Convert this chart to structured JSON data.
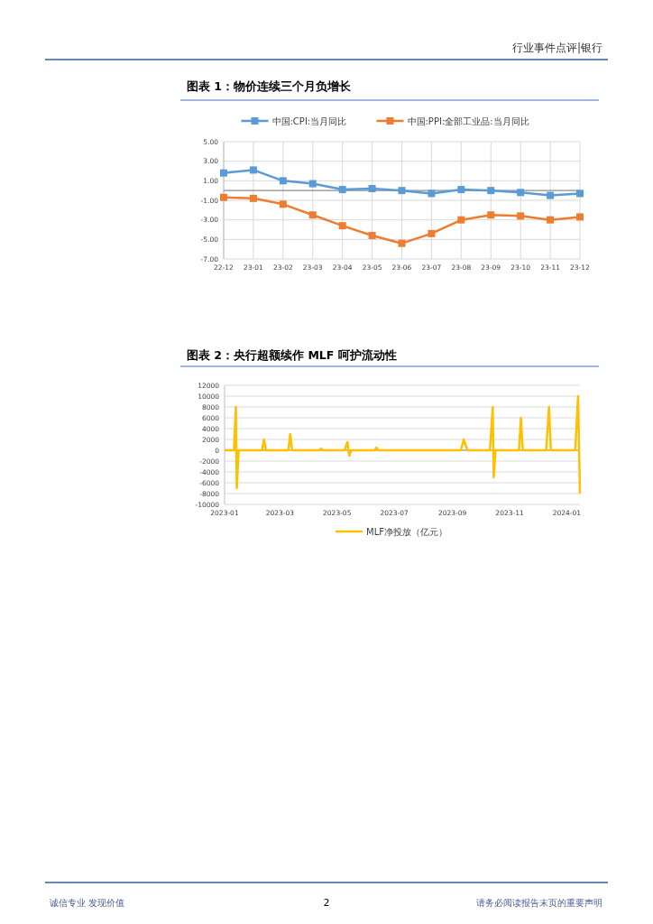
{
  "chart_data": [
    {
      "type": "line",
      "title": "图表 1：物价连续三个月负增长",
      "categories": [
        "22-12",
        "23-01",
        "23-02",
        "23-03",
        "23-04",
        "23-05",
        "23-06",
        "23-07",
        "23-08",
        "23-09",
        "23-10",
        "23-11",
        "23-12"
      ],
      "series": [
        {
          "name": "中国:CPI:当月同比",
          "color": "#5b9bd5",
          "values": [
            1.8,
            2.1,
            1.0,
            0.7,
            0.1,
            0.2,
            0.0,
            -0.3,
            0.1,
            0.0,
            -0.2,
            -0.5,
            -0.3
          ]
        },
        {
          "name": "中国:PPI:全部工业品:当月同比",
          "color": "#ed7d31",
          "values": [
            -0.7,
            -0.8,
            -1.4,
            -2.5,
            -3.6,
            -4.6,
            -5.4,
            -4.4,
            -3.0,
            -2.5,
            -2.6,
            -3.0,
            -2.7
          ]
        }
      ],
      "ylim": [
        -7,
        5
      ],
      "yticks": [
        {
          "value": 5,
          "label": "5.00"
        },
        {
          "value": 3,
          "label": "3.00"
        },
        {
          "value": 1,
          "label": "1.00"
        },
        {
          "value": -1,
          "label": "-1.00"
        },
        {
          "value": -3,
          "label": "-3.00"
        },
        {
          "value": -5,
          "label": "-5.00"
        },
        {
          "value": -7,
          "label": "-7.00"
        }
      ],
      "grid": true,
      "legend": "top",
      "marker": "square",
      "annotations": [
        "行业事件点评|银行"
      ]
    },
    {
      "type": "line",
      "title": "图表 2：央行超额续作 MLF 呵护流动性",
      "x": [
        "2023-01-01",
        "2023-01-11",
        "2023-01-13",
        "2023-01-14",
        "2023-01-16",
        "2023-02-10",
        "2023-02-12",
        "2023-02-14",
        "2023-03-10",
        "2023-03-12",
        "2023-03-14",
        "2023-04-12",
        "2023-04-14",
        "2023-04-16",
        "2023-05-09",
        "2023-05-12",
        "2023-05-14",
        "2023-05-16",
        "2023-06-10",
        "2023-06-12",
        "2023-06-14",
        "2023-09-10",
        "2023-09-13",
        "2023-09-17",
        "2023-10-11",
        "2023-10-14",
        "2023-10-15",
        "2023-10-17",
        "2023-11-11",
        "2023-11-13",
        "2023-11-15",
        "2023-12-10",
        "2023-12-13",
        "2023-12-15",
        "2024-01-10",
        "2024-01-13",
        "2024-01-15"
      ],
      "series": [
        {
          "name": "MLF净投放（亿元）",
          "color": "#ffc000",
          "values": [
            0,
            0,
            8000,
            -7000,
            0,
            0,
            2000,
            0,
            0,
            3000,
            0,
            0,
            300,
            0,
            0,
            1500,
            -1000,
            0,
            0,
            500,
            0,
            0,
            2000,
            0,
            0,
            8000,
            -5000,
            0,
            0,
            6000,
            0,
            0,
            8000,
            0,
            0,
            10000,
            -8000
          ]
        }
      ],
      "xlim": [
        "2023-01-01",
        "2024-01-15"
      ],
      "xticks": [
        "2023-01",
        "2023-03",
        "2023-05",
        "2023-07",
        "2023-09",
        "2023-11",
        "2024-01"
      ],
      "ylim": [
        -10000,
        12000
      ],
      "yticks": [
        -10000,
        -8000,
        -6000,
        -4000,
        -2000,
        0,
        2000,
        4000,
        6000,
        8000,
        10000,
        12000
      ],
      "grid": "y",
      "legend": "bottom",
      "annotations": [
        "诚信专业 发现价值",
        "2",
        "请务必阅读报告末页的重要声明"
      ]
    }
  ]
}
